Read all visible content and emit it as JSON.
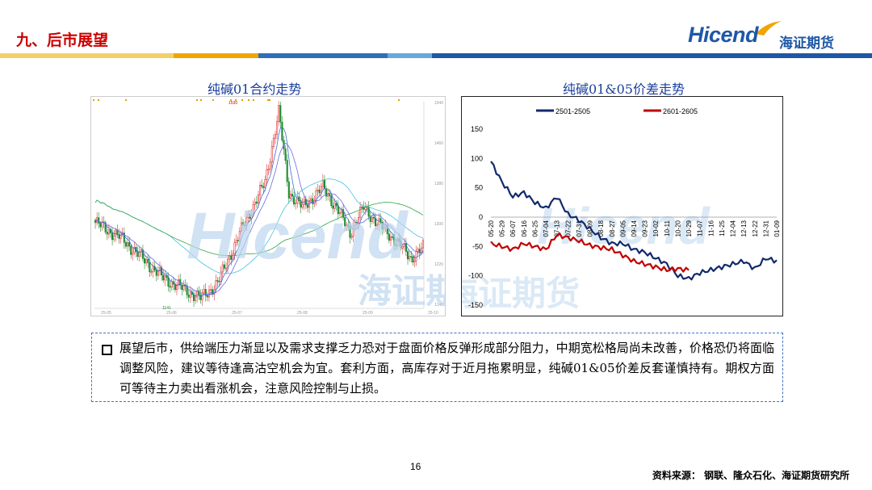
{
  "slide": {
    "section_title": "九、后市展望",
    "page_number": "16",
    "source_note": "资料来源： 钢联、隆众石化、海证期货研究所"
  },
  "logo": {
    "latin": "Hicend",
    "registered": "®",
    "cn": "海证期货",
    "brand_color": "#1e57a6",
    "accent_color": "#f0a500"
  },
  "header_band_colors": [
    "#f3cf6a",
    "#f0a500",
    "#2e6fb8",
    "#6aa7dc",
    "#1e57a6"
  ],
  "left_chart": {
    "title": "纯碱01合约走势",
    "y_ticks": [
      "1540",
      "1460",
      "1380",
      "1300",
      "1220",
      "1140"
    ],
    "x_ticks": [
      "25-05",
      "25-06",
      "25-07",
      "25-08",
      "25-09",
      "25-10"
    ],
    "high_label": "1530",
    "low_label": "1141",
    "watermark_latin": "Hicend",
    "watermark_cn": "海证期货"
  },
  "chart_data": {
    "type": "line",
    "title": "纯碱01&05价差走势",
    "xlabel": "",
    "ylabel": "",
    "ylim": [
      -150,
      150
    ],
    "y_ticks": [
      150,
      100,
      50,
      0,
      -50,
      -100,
      -150
    ],
    "grid": false,
    "legend_position": "top",
    "x": [
      "05-20",
      "05-29",
      "06-07",
      "06-16",
      "06-25",
      "07-04",
      "07-13",
      "07-22",
      "07-31",
      "08-09",
      "08-18",
      "08-27",
      "09-05",
      "09-14",
      "09-23",
      "10-02",
      "10-11",
      "10-20",
      "10-29",
      "11-07",
      "11-16",
      "11-25",
      "12-04",
      "12-13",
      "12-22",
      "12-31",
      "01-09"
    ],
    "series": [
      {
        "name": "2501-2505",
        "color": "#12296b",
        "values": [
          95,
          60,
          35,
          42,
          25,
          15,
          35,
          5,
          -5,
          -20,
          -35,
          -45,
          -45,
          -55,
          -60,
          -70,
          -80,
          -100,
          -105,
          -95,
          -90,
          -85,
          -80,
          -75,
          -88,
          -70,
          -75
        ]
      },
      {
        "name": "2601-2605",
        "color": "#c00000",
        "values": [
          -45,
          -50,
          -55,
          -45,
          -50,
          -55,
          -30,
          -35,
          -40,
          -48,
          -52,
          -55,
          -65,
          -75,
          -80,
          -85,
          -90,
          -88,
          -90,
          null,
          null,
          null,
          null,
          null,
          null,
          null,
          null
        ]
      }
    ]
  },
  "text_box": {
    "paragraph": "展望后市，供给端压力渐显以及需求支撑乏力恐对于盘面价格反弹形成部分阻力，中期宽松格局尚未改善，价格恐仍将面临调整风险，建议等待逢高沽空机会为宜。套利方面，高库存对于近月拖累明显，纯碱01&05价差反套谨慎持有。期权方面可等待主力卖出看涨机会，注意风险控制与止损。"
  }
}
